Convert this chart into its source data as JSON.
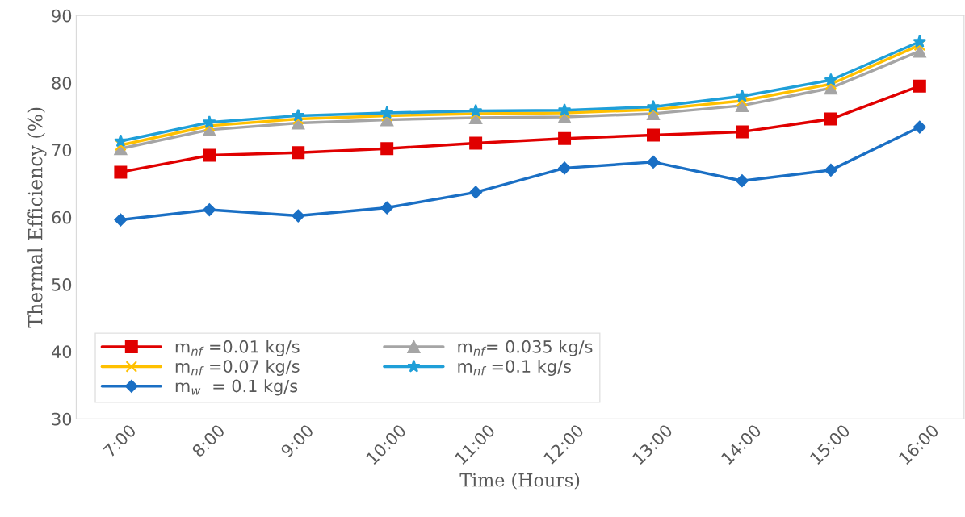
{
  "chart_data": {
    "type": "line",
    "xlabel": "Time (Hours)",
    "ylabel": "Thermal Efficiency (%)",
    "categories": [
      "7:00",
      "8:00",
      "9:00",
      "10:00",
      "11:00",
      "12:00",
      "13:00",
      "14:00",
      "15:00",
      "16:00"
    ],
    "ylim": [
      30,
      90
    ],
    "yticks": [
      30,
      40,
      50,
      60,
      70,
      80,
      90
    ],
    "grid": false,
    "legend": "bottom left",
    "series": [
      {
        "name": "m$_{nf}$ =0.01 kg/s",
        "color": "#e00000",
        "marker": "square",
        "values": [
          66.7,
          69.2,
          69.6,
          70.2,
          71.0,
          71.7,
          72.2,
          72.7,
          74.6,
          79.5
        ]
      },
      {
        "name": "m$_{nf}$= 0.035 kg/s",
        "color": "#a5a5a5",
        "marker": "triangle",
        "values": [
          70.2,
          73.0,
          74.0,
          74.5,
          74.8,
          74.9,
          75.4,
          76.6,
          79.2,
          84.7
        ]
      },
      {
        "name": "m$_{nf}$ =0.07 kg/s",
        "color": "#ffc000",
        "marker": "cross",
        "values": [
          70.7,
          73.6,
          74.6,
          75.1,
          75.4,
          75.5,
          76.0,
          77.3,
          79.8,
          85.6
        ]
      },
      {
        "name": "m$_{nf}$ =0.1 kg/s",
        "color": "#1f9fd8",
        "marker": "star",
        "values": [
          71.3,
          74.1,
          75.1,
          75.5,
          75.8,
          75.9,
          76.4,
          78.0,
          80.4,
          86.1
        ]
      },
      {
        "name": "m$_{w}$  = 0.1 kg/s",
        "color": "#1a6fc4",
        "marker": "diamond",
        "values": [
          59.6,
          61.1,
          60.2,
          61.4,
          63.7,
          67.3,
          68.2,
          65.4,
          67.0,
          73.4
        ]
      }
    ]
  }
}
